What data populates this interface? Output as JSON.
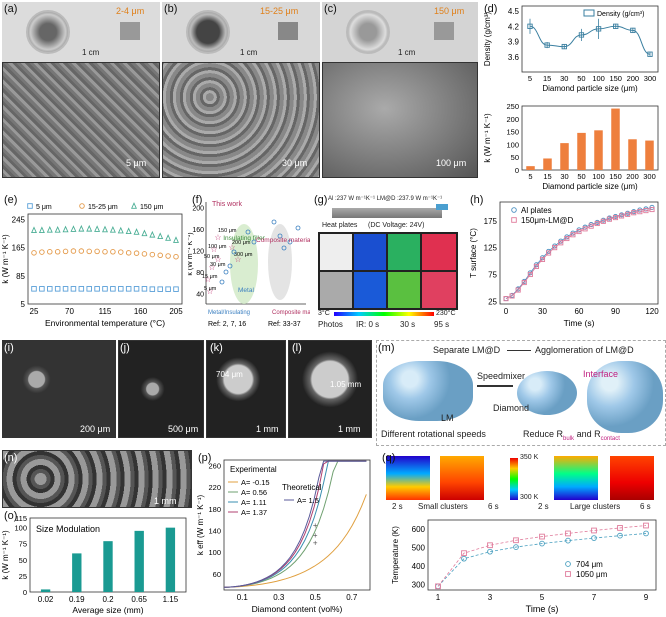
{
  "labels": {
    "a": "(a)",
    "b": "(b)",
    "c": "(c)",
    "d": "(d)",
    "e": "(e)",
    "f": "(f)",
    "g": "(g)",
    "h": "(h)",
    "i": "(i)",
    "j": "(j)",
    "k": "(k)",
    "l": "(l)",
    "m": "(m)",
    "n": "(n)",
    "o": "(o)",
    "p": "(p)",
    "q": "(q)"
  },
  "photos": {
    "a": {
      "size": "2-4 μm",
      "scale_cm": "1 cm",
      "sem_scale": "5 μm"
    },
    "b": {
      "size": "15-25 μm",
      "scale_cm": "1 cm",
      "sem_scale": "30 μm"
    },
    "c": {
      "size": "150 μm",
      "scale_cm": "1 cm",
      "sem_scale": "100 μm"
    }
  },
  "sem_bottom": {
    "i": "200 μm",
    "j": "500 μm",
    "k_scale": "1 mm",
    "k_dim": "704 μm",
    "l_scale": "1 mm",
    "l_dim": "1.05 mm",
    "n_scale": "1 mm"
  },
  "panel_g": {
    "header": "Al :237 W m⁻¹K⁻¹ LM@D :237.9 W m⁻¹K⁻¹",
    "heat_plates": "Heat plates",
    "voltage": "(DC Voltage: 24V)",
    "t_min": "3°C",
    "t_max": "230°C",
    "row_labels": [
      "Photos",
      "IR: 0 s",
      "30 s",
      "95 s"
    ]
  },
  "panel_m": {
    "separate": "Separate LM@D",
    "agglomeration": "Agglomeration of LM@D",
    "speedmixer": "Speedmixer",
    "interface": "Interface",
    "diamond": "Diamond",
    "lm": "LM",
    "speeds": "Different rotational speeds",
    "reduce": "Reduce R",
    "r_bulk": "bulk",
    "and": "and R",
    "r_contact": "contact"
  },
  "panel_q": {
    "t_max": "350 K",
    "t_min": "300 K",
    "small": "Small clusters",
    "large": "Large clusters",
    "t1": "2 s",
    "t2": "6 s",
    "t3": "2 s",
    "t4": "6 s"
  },
  "chart_data": [
    {
      "panel": "d-top",
      "type": "line",
      "categories": [
        "5",
        "15",
        "30",
        "50",
        "100",
        "150",
        "200",
        "300"
      ],
      "series": [
        {
          "name": "Density (g/cm³)",
          "values": [
            4.2,
            3.83,
            3.8,
            4.03,
            4.15,
            4.2,
            4.12,
            3.65
          ]
        }
      ],
      "errors": [
        0.15,
        0.06,
        0.04,
        0.12,
        0.2,
        0.05,
        0.05,
        0.04
      ],
      "ylabel": "Density (g/cm³)",
      "ylim": [
        3.3,
        4.6
      ],
      "yticks": [
        "3.6",
        "3.9",
        "4.2",
        "4.5"
      ],
      "xlabel": "Diamond particle size (μm)",
      "color": "#3a7fa0"
    },
    {
      "panel": "d-bottom",
      "type": "bar",
      "categories": [
        "5",
        "15",
        "30",
        "50",
        "100",
        "150",
        "200",
        "300"
      ],
      "values": [
        15,
        45,
        105,
        145,
        155,
        240,
        120,
        115
      ],
      "ylabel": "k (W m⁻¹ K⁻¹)",
      "ylim": [
        0,
        250
      ],
      "yticks": [
        "0",
        "50",
        "100",
        "150",
        "200",
        "250"
      ],
      "xlabel": "Diamond particle size (μm)",
      "color": "#ee7f3d"
    },
    {
      "panel": "e",
      "type": "scatter",
      "x": [
        25,
        35,
        45,
        55,
        65,
        75,
        85,
        95,
        105,
        115,
        125,
        135,
        145,
        155,
        165,
        175,
        185,
        195,
        205
      ],
      "series": [
        {
          "name": "5 μm",
          "values": [
            48,
            48,
            48,
            48,
            48,
            48,
            48,
            48,
            48,
            48,
            48,
            48,
            48,
            48,
            48,
            47,
            47,
            47,
            47
          ],
          "color": "#5aa0d8",
          "marker": "square"
        },
        {
          "name": "15-25 μm",
          "values": [
            150,
            152,
            153,
            153,
            154,
            155,
            155,
            154,
            154,
            153,
            153,
            152,
            150,
            149,
            147,
            145,
            143,
            141,
            139
          ],
          "color": "#e49a4a",
          "marker": "circle"
        },
        {
          "name": "150 μm",
          "values": [
            214,
            214,
            215,
            215,
            216,
            217,
            218,
            218,
            217,
            216,
            215,
            213,
            211,
            209,
            205,
            201,
            197,
            192,
            186
          ],
          "color": "#4caf96",
          "marker": "triangle"
        }
      ],
      "ylabel": "k (W m⁻¹ K⁻¹)",
      "xlabel": "Environmental temperature (°C)",
      "xticks": [
        "25",
        "70",
        "115",
        "160",
        "205"
      ],
      "yticks": [
        "5",
        "85",
        "165",
        "245"
      ],
      "ylim": [
        5,
        260
      ]
    },
    {
      "panel": "f",
      "type": "scatter",
      "legend": [
        "This work",
        "Metal/Insulating",
        "Ref: 2, 7, 16",
        "Ref: 33-37"
      ],
      "categories_text": [
        "Insulating filler",
        "Composite material",
        "Metal",
        "Composite material"
      ],
      "point_labels": [
        "150 μm",
        "100 μm",
        "50 μm",
        "30 μm",
        "15 μm",
        "5 μm",
        "200 μm",
        "300 μm"
      ],
      "ylabel": "k (W m⁻¹ K⁻¹)",
      "yticks": [
        "40",
        "80",
        "120",
        "160",
        "200"
      ]
    },
    {
      "panel": "h",
      "type": "line",
      "x": [
        0,
        5,
        10,
        15,
        20,
        25,
        30,
        35,
        40,
        45,
        50,
        55,
        60,
        65,
        70,
        75,
        80,
        85,
        90,
        95,
        100,
        105,
        110,
        115,
        120
      ],
      "series": [
        {
          "name": "Al plates",
          "values": [
            30,
            36,
            48,
            62,
            78,
            93,
            106,
            118,
            128,
            137,
            145,
            152,
            158,
            163,
            168,
            172,
            176,
            180,
            183,
            186,
            189,
            192,
            195,
            197,
            200
          ],
          "color": "#4a8fc0",
          "marker": "circle"
        },
        {
          "name": "150μm-LM@D",
          "values": [
            30,
            35,
            46,
            60,
            75,
            90,
            103,
            115,
            125,
            134,
            142,
            149,
            155,
            160,
            165,
            170,
            174,
            178,
            181,
            184,
            187,
            190,
            192,
            194,
            196
          ],
          "color": "#e07b9b",
          "marker": "square"
        }
      ],
      "ylabel": "T surface (°C)",
      "xlabel": "Time (s)",
      "xticks": [
        "0",
        "30",
        "60",
        "90",
        "120"
      ],
      "yticks": [
        "25",
        "75",
        "125",
        "175"
      ],
      "ylim": [
        20,
        210
      ]
    },
    {
      "panel": "o",
      "type": "bar",
      "title": "Size Modulation",
      "categories": [
        "0.02",
        "0.19",
        "0.2",
        "0.65",
        "1.15"
      ],
      "values": [
        4,
        60,
        79,
        95,
        100
      ],
      "ylabel": "k (W m⁻¹ K⁻¹)",
      "xlabel": "Average size (mm)",
      "yticks": [
        "0",
        "25",
        "50",
        "75",
        "100",
        "115"
      ],
      "ylim": [
        0,
        115
      ],
      "color": "#1a9a92"
    },
    {
      "panel": "p",
      "type": "line",
      "legend_experimental": "Experimental",
      "legend_theoretical": "Theoretical",
      "series": [
        {
          "name": "A= -0.15",
          "color": "#e0a040"
        },
        {
          "name": "A= 0.56",
          "color": "#6fa070"
        },
        {
          "name": "A= 1.11",
          "color": "#3a8fb0"
        },
        {
          "name": "A= 1.37",
          "color": "#b04070"
        },
        {
          "name": "A= 1.5",
          "color": "#5a5a9a"
        }
      ],
      "ylabel": "k eff (W m⁻¹ K⁻¹)",
      "xlabel": "Diamond content (vol%)",
      "xticks": [
        "0.1",
        "0.3",
        "0.5",
        "0.7"
      ],
      "yticks": [
        "60",
        "100",
        "140",
        "180",
        "220",
        "260"
      ],
      "ylim": [
        30,
        270
      ],
      "xlim": [
        0,
        0.8
      ]
    },
    {
      "panel": "q-bottom",
      "type": "line",
      "x": [
        1,
        2,
        3,
        4,
        5,
        6,
        7,
        8,
        9
      ],
      "series": [
        {
          "name": "704 μm",
          "values": [
            290,
            440,
            478,
            503,
            522,
            538,
            552,
            565,
            577
          ],
          "color": "#4aa0c0",
          "marker": "circle"
        },
        {
          "name": "1050 μm",
          "values": [
            290,
            470,
            513,
            540,
            560,
            577,
            593,
            607,
            620
          ],
          "color": "#e07b9b",
          "marker": "square"
        }
      ],
      "ylabel": "Temperature (K)",
      "xlabel": "Time (s)",
      "xticks": [
        "1",
        "3",
        "5",
        "7",
        "9"
      ],
      "yticks": [
        "300",
        "400",
        "500",
        "600"
      ],
      "ylim": [
        270,
        650
      ]
    }
  ]
}
